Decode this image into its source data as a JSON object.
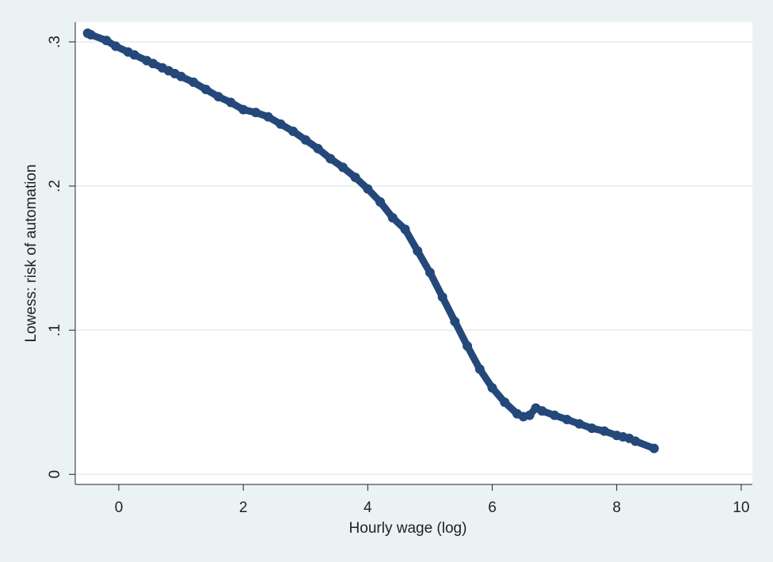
{
  "chart_data": {
    "type": "scatter",
    "xlabel": "Hourly wage (log)",
    "ylabel": "Lowess: risk of automation",
    "x": [
      -0.5,
      -0.45,
      -0.2,
      -0.05,
      0.15,
      0.25,
      0.45,
      0.55,
      0.7,
      0.8,
      0.9,
      1.0,
      1.2,
      1.4,
      1.6,
      1.8,
      2.0,
      2.2,
      2.4,
      2.6,
      2.8,
      3.0,
      3.2,
      3.4,
      3.6,
      3.8,
      4.0,
      4.2,
      4.4,
      4.6,
      4.8,
      5.0,
      5.2,
      5.4,
      5.6,
      5.8,
      6.0,
      6.2,
      6.4,
      6.5,
      6.6,
      6.7,
      6.8,
      7.0,
      7.2,
      7.4,
      7.6,
      7.8,
      8.0,
      8.1,
      8.2,
      8.3,
      8.6
    ],
    "values": [
      0.306,
      0.305,
      0.301,
      0.297,
      0.293,
      0.291,
      0.287,
      0.285,
      0.282,
      0.28,
      0.278,
      0.276,
      0.272,
      0.267,
      0.262,
      0.258,
      0.253,
      0.251,
      0.248,
      0.243,
      0.238,
      0.232,
      0.226,
      0.219,
      0.213,
      0.206,
      0.198,
      0.189,
      0.178,
      0.17,
      0.155,
      0.14,
      0.123,
      0.106,
      0.089,
      0.073,
      0.06,
      0.05,
      0.042,
      0.04,
      0.041,
      0.046,
      0.044,
      0.041,
      0.038,
      0.035,
      0.032,
      0.03,
      0.027,
      0.026,
      0.025,
      0.023,
      0.018
    ],
    "color": "#24487a",
    "xlim": [
      -0.7,
      10.18
    ],
    "ylim": [
      -0.007,
      0.3137
    ],
    "xticks": [
      0,
      2,
      4,
      6,
      8,
      10
    ],
    "yticks": [
      0,
      {
        "value": 0.1,
        "label": ".1"
      },
      {
        "value": 0.2,
        "label": ".2"
      },
      {
        "value": 0.3,
        "label": ".3"
      }
    ],
    "grid": true
  }
}
